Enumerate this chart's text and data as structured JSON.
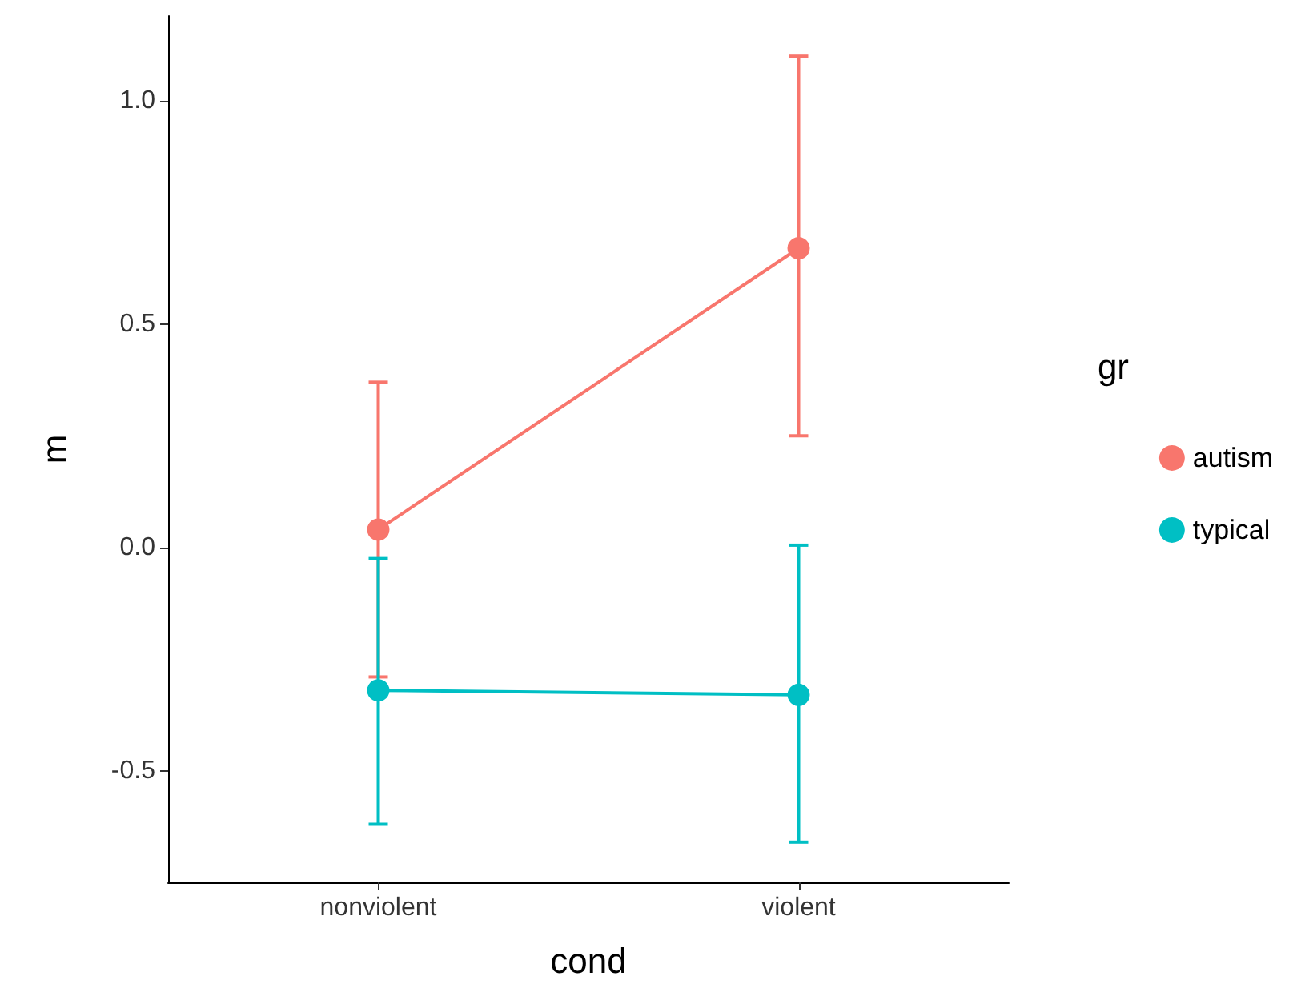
{
  "chart_data": {
    "type": "line",
    "xlabel": "cond",
    "ylabel": "m",
    "legend_title": "gr",
    "categories": [
      "nonviolent",
      "violent"
    ],
    "series": [
      {
        "name": "autism",
        "color": "#f8766d",
        "values": [
          0.04,
          0.67
        ],
        "errors": [
          [
            -0.29,
            0.37
          ],
          [
            0.25,
            1.1
          ]
        ]
      },
      {
        "name": "typical",
        "color": "#00bfc4",
        "values": [
          -0.32,
          -0.33
        ],
        "errors": [
          [
            -0.62,
            -0.025
          ],
          [
            -0.66,
            0.005
          ]
        ]
      }
    ],
    "ylim": [
      -0.75,
      1.19
    ],
    "yticks": [
      {
        "value": -0.5,
        "label": "-0.5"
      },
      {
        "value": 0,
        "label": "0.0"
      },
      {
        "value": 0.5,
        "label": "0.5"
      },
      {
        "value": 1,
        "label": "1.0"
      }
    ],
    "grid": false,
    "legend": "right",
    "marker": "circle",
    "line_style": "solid"
  }
}
